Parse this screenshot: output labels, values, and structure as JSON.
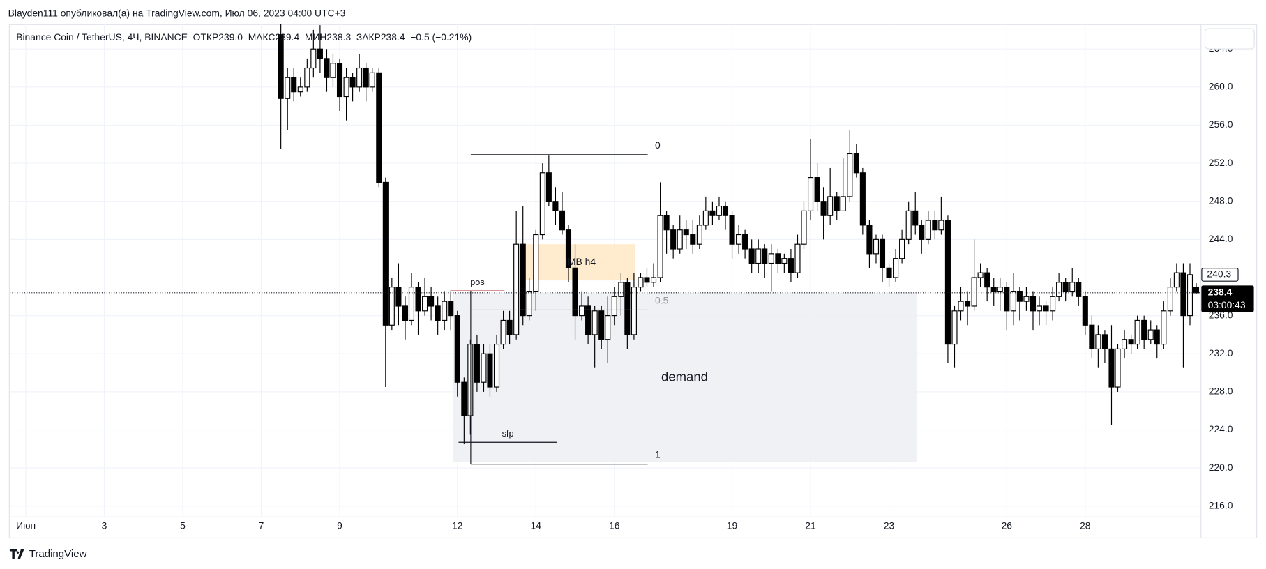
{
  "header": "Blayden111 опубликовал(а) на TradingView.com, Июл 06, 2023 04:00 UTC+3",
  "footer": "TradingView",
  "chart_data": {
    "type": "candlestick",
    "title": "Binance Coin / TetherUS, 4Ч, BINANCE  ОТКР239.0  МАКС239.4  МИН238.3  ЗАКР238.4  −0.5 (−0.21%)",
    "up_color": "#ffffff",
    "down_color": "#000000",
    "xlim": [
      0.59,
      30.94
    ],
    "ylim": [
      214.9,
      266.6
    ],
    "xticks": [
      {
        "value": 1,
        "label": "Июн"
      },
      3,
      5,
      7,
      9,
      12,
      14,
      16,
      19,
      21,
      23,
      26,
      28
    ],
    "yticks": [
      {
        "value": 216,
        "label": "216.0"
      },
      {
        "value": 220,
        "label": "220.0"
      },
      {
        "value": 224,
        "label": "224.0"
      },
      {
        "value": 228,
        "label": "228.0"
      },
      {
        "value": 232,
        "label": "232.0"
      },
      {
        "value": 236,
        "label": "236.0"
      },
      {
        "value": 244,
        "label": "244.0"
      },
      {
        "value": 248,
        "label": "248.0"
      },
      {
        "value": 252,
        "label": "252.0"
      },
      {
        "value": 256,
        "label": "256.0"
      },
      {
        "value": 260,
        "label": "260.0"
      },
      {
        "value": 264,
        "label": "264.0"
      }
    ],
    "grid": true,
    "x": [
      7.5,
      7.67,
      7.83,
      8,
      8.17,
      8.33,
      8.5,
      8.67,
      8.83,
      9,
      9.17,
      9.33,
      9.5,
      9.67,
      9.83,
      10,
      10.17,
      10.33,
      10.5,
      10.67,
      10.83,
      11,
      11.17,
      11.33,
      11.5,
      11.67,
      11.83,
      12,
      12.17,
      12.33,
      12.5,
      12.67,
      12.83,
      13,
      13.17,
      13.33,
      13.5,
      13.67,
      13.83,
      14,
      14.17,
      14.33,
      14.5,
      14.67,
      14.83,
      15,
      15.17,
      15.33,
      15.5,
      15.67,
      15.83,
      16,
      16.17,
      16.33,
      16.5,
      16.67,
      16.83,
      17,
      17.17,
      17.33,
      17.5,
      17.67,
      17.83,
      18,
      18.17,
      18.33,
      18.5,
      18.67,
      18.83,
      19,
      19.17,
      19.33,
      19.5,
      19.67,
      19.83,
      20,
      20.17,
      20.33,
      20.5,
      20.67,
      20.83,
      21,
      21.17,
      21.33,
      21.5,
      21.67,
      21.83,
      22,
      22.17,
      22.33,
      22.5,
      22.67,
      22.83,
      23,
      23.17,
      23.33,
      23.5,
      23.67,
      23.83,
      24,
      24.17,
      24.33,
      24.5,
      24.67,
      24.83,
      25,
      25.17,
      25.33,
      25.5,
      25.67,
      25.83,
      26,
      26.17,
      26.33,
      26.5,
      26.67,
      26.83,
      27,
      27.17,
      27.33,
      27.5,
      27.67,
      27.83,
      28,
      28.17,
      28.33,
      28.5,
      28.67,
      28.83,
      29,
      29.17,
      29.33,
      29.5,
      29.67,
      29.83,
      30,
      30.17,
      30.33,
      30.5,
      30.67,
      30.83
    ],
    "open": [
      265.5,
      258.8,
      261,
      259.5,
      260,
      262,
      264,
      263,
      261,
      262.5,
      259,
      261,
      260,
      262,
      260,
      261.5,
      250,
      235,
      239,
      237,
      235.5,
      239,
      236.5,
      238,
      237,
      235.5,
      237.5,
      236,
      229,
      225.5,
      233,
      229,
      232,
      228.5,
      233,
      235.5,
      234,
      243.5,
      236,
      238.5,
      244.5,
      251,
      248,
      247,
      245,
      241,
      236,
      237,
      234,
      236.5,
      233.5,
      236,
      238,
      239.5,
      234,
      239,
      240,
      239.5,
      240,
      246.5,
      245,
      243,
      245,
      244.5,
      243.5,
      245.5,
      247,
      246.5,
      247.5,
      246.5,
      243.5,
      244.5,
      243,
      241.5,
      243,
      241.5,
      242.5,
      241.5,
      242,
      240.5,
      243.5,
      247,
      250.5,
      248,
      246.5,
      248.5,
      247,
      248.5,
      253,
      251,
      245.5,
      242.5,
      244,
      241,
      240,
      242,
      244,
      247,
      245.5,
      244,
      246,
      245,
      246,
      233,
      236.5,
      237.5,
      237,
      240,
      240.5,
      239,
      238.5,
      239,
      236.5,
      238.5,
      237.5,
      238,
      236.5,
      237,
      236.5,
      238,
      239.5,
      238.5,
      239.5,
      238,
      235,
      232.5,
      234,
      232.5,
      228.5,
      232.5,
      233.5,
      233,
      235.5,
      233.5,
      234.5,
      233,
      236.5,
      239,
      240.5,
      236,
      239
    ],
    "high": [
      266.6,
      262,
      262,
      261,
      263,
      266,
      266.5,
      264,
      263.5,
      263,
      262,
      261.5,
      263.5,
      262.5,
      262,
      262,
      250.5,
      240,
      241.5,
      238,
      240.5,
      239.5,
      240,
      239,
      238,
      238.5,
      238.5,
      236.5,
      229.5,
      233.5,
      234,
      233,
      233,
      234,
      236.5,
      236.5,
      247,
      247.5,
      240,
      245,
      252,
      252.8,
      249.5,
      249,
      245.5,
      243.5,
      238.5,
      238,
      237,
      237,
      238,
      239,
      240.5,
      240,
      240.5,
      240.5,
      241,
      241.5,
      250,
      247,
      245.5,
      246.5,
      246,
      246,
      246.5,
      248.5,
      248,
      248.5,
      248,
      247,
      245.5,
      245,
      244,
      244,
      243.5,
      243.5,
      243,
      242.5,
      243,
      244.5,
      248,
      254.5,
      252,
      249.5,
      251.5,
      249,
      252.5,
      255.5,
      254,
      251.5,
      246,
      244.5,
      244.5,
      241.5,
      243,
      245,
      248,
      249,
      246,
      247,
      247,
      248.5,
      246.5,
      237,
      239,
      238.5,
      244,
      241.5,
      241,
      240,
      240,
      239.5,
      240.5,
      239,
      239,
      238.5,
      238,
      237.5,
      239,
      240.5,
      240,
      241,
      240,
      238.5,
      236,
      235,
      234.5,
      235,
      233,
      234.5,
      234,
      236,
      236,
      235.5,
      235,
      237.5,
      240,
      241.5,
      241.5,
      241.5,
      239.4
    ],
    "low": [
      253.5,
      255.5,
      258.5,
      259,
      259.5,
      261,
      261.5,
      259.5,
      260,
      257.5,
      256.5,
      258.5,
      259.5,
      258.5,
      259.5,
      249.5,
      228.5,
      234.5,
      235,
      233.5,
      235,
      234,
      236,
      235.5,
      234,
      234.5,
      234.5,
      227.5,
      222.5,
      223.5,
      228,
      228,
      227.5,
      228,
      232.5,
      233,
      233.5,
      235,
      235.5,
      236.5,
      244,
      247.5,
      245.5,
      244.5,
      239.5,
      233.5,
      235.5,
      233,
      230.5,
      232.5,
      231,
      235,
      236,
      232.5,
      233.5,
      238.5,
      239,
      239,
      239.5,
      242.5,
      242,
      242.5,
      243,
      242.5,
      243,
      245,
      245.5,
      246,
      245,
      242,
      242.5,
      242,
      240.5,
      240.5,
      240,
      238.5,
      240.5,
      240.5,
      239.5,
      240,
      243,
      246,
      247,
      244,
      245.5,
      246,
      247,
      248,
      250.5,
      244.5,
      241,
      241.5,
      239.5,
      239,
      239.5,
      241.5,
      243.5,
      244.5,
      242.5,
      243.5,
      244,
      244.5,
      231,
      230.5,
      235.5,
      235,
      236.5,
      239,
      237.5,
      237,
      236.5,
      234.5,
      235,
      235.5,
      236.5,
      234.5,
      235,
      235,
      235.5,
      237.5,
      237.5,
      238,
      237,
      234,
      231.5,
      230.5,
      231,
      224.5,
      228,
      231.5,
      232,
      232.5,
      232.5,
      233,
      231.5,
      232.5,
      236,
      238.5,
      230.5,
      235,
      238.3
    ],
    "close": [
      258.8,
      261,
      259.5,
      260,
      262,
      264,
      263,
      261,
      262.5,
      259,
      261,
      260,
      262,
      260,
      261.5,
      250,
      235,
      239,
      237,
      235.5,
      239,
      236.5,
      238,
      237,
      235.5,
      237.5,
      236,
      229,
      225.5,
      233,
      229,
      232,
      228.5,
      233,
      235.5,
      234,
      243.5,
      236,
      238.5,
      244.5,
      251,
      248,
      247,
      245,
      241,
      236,
      237,
      234,
      236.5,
      233.5,
      236,
      238,
      239.5,
      234,
      239,
      240,
      239.5,
      240,
      246.5,
      245,
      243,
      245,
      244.5,
      243.5,
      245.5,
      247,
      246.5,
      247.5,
      246.5,
      243.5,
      244.5,
      243,
      241.5,
      243,
      241.5,
      242.5,
      241.5,
      242,
      240.5,
      243.5,
      247,
      250.5,
      248,
      246.5,
      248.5,
      247,
      248.5,
      253,
      251,
      245.5,
      242.5,
      244,
      241,
      240,
      242,
      244,
      247,
      245.5,
      244,
      246,
      245,
      246,
      233,
      236.5,
      237.5,
      237,
      240,
      240.5,
      239,
      238.5,
      239,
      236.5,
      238.5,
      237.5,
      238,
      236.5,
      237,
      236.5,
      238,
      239.5,
      238.5,
      239.5,
      238,
      235,
      232.5,
      234,
      232.5,
      228.5,
      232.5,
      233.5,
      233,
      235.5,
      233.5,
      234.5,
      233,
      236.5,
      239,
      240.5,
      236,
      240.3,
      238.4
    ],
    "last_price": 238.4,
    "countdown": "03:00:43",
    "marker_price": 240.3,
    "fib": {
      "x": [
        12.34,
        16.85
      ],
      "levels": [
        {
          "value": 252.9,
          "label": "0",
          "color": "#131722"
        },
        {
          "value": 236.6,
          "label": "0.5",
          "color": "#9598a1"
        },
        {
          "value": 220.4,
          "label": "1",
          "color": "#131722"
        }
      ]
    },
    "zones": [
      {
        "label": "demand",
        "x": [
          11.88,
          23.7
        ],
        "y": [
          220.6,
          238.4
        ],
        "color": "#eceef2"
      },
      {
        "label": "IMB h4",
        "x": [
          13.74,
          16.53
        ],
        "y": [
          239.7,
          243.5
        ],
        "color": "#ffe7c4"
      }
    ],
    "lines": [
      {
        "label": "pos",
        "x": [
          11.82,
          13.2
        ],
        "value": 238.6,
        "color": "#b22833"
      },
      {
        "label": "sfp",
        "x": [
          12.03,
          14.54
        ],
        "value": 222.7,
        "color": "#131722"
      }
    ]
  }
}
